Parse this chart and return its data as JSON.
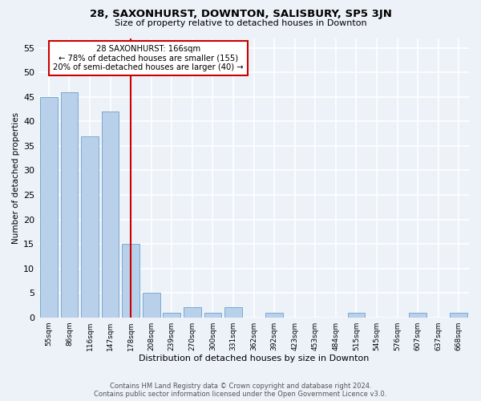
{
  "title": "28, SAXONHURST, DOWNTON, SALISBURY, SP5 3JN",
  "subtitle": "Size of property relative to detached houses in Downton",
  "xlabel": "Distribution of detached houses by size in Downton",
  "ylabel": "Number of detached properties",
  "categories": [
    "55sqm",
    "86sqm",
    "116sqm",
    "147sqm",
    "178sqm",
    "208sqm",
    "239sqm",
    "270sqm",
    "300sqm",
    "331sqm",
    "362sqm",
    "392sqm",
    "423sqm",
    "453sqm",
    "484sqm",
    "515sqm",
    "545sqm",
    "576sqm",
    "607sqm",
    "637sqm",
    "668sqm"
  ],
  "values": [
    45,
    46,
    37,
    42,
    15,
    5,
    1,
    2,
    1,
    2,
    0,
    1,
    0,
    0,
    0,
    1,
    0,
    0,
    1,
    0,
    1
  ],
  "bar_color": "#b8d0ea",
  "bar_edge_color": "#7aaad0",
  "vline_x": 4.0,
  "vline_color": "#cc0000",
  "annotation_box_text": "28 SAXONHURST: 166sqm\n← 78% of detached houses are smaller (155)\n20% of semi-detached houses are larger (40) →",
  "annotation_box_color": "#cc0000",
  "ylim": [
    0,
    57
  ],
  "yticks": [
    0,
    5,
    10,
    15,
    20,
    25,
    30,
    35,
    40,
    45,
    50,
    55
  ],
  "background_color": "#edf2f9",
  "grid_color": "#ffffff",
  "title_fontsize": 9.5,
  "subtitle_fontsize": 8.5,
  "footer_line1": "Contains HM Land Registry data © Crown copyright and database right 2024.",
  "footer_line2": "Contains public sector information licensed under the Open Government Licence v3.0."
}
